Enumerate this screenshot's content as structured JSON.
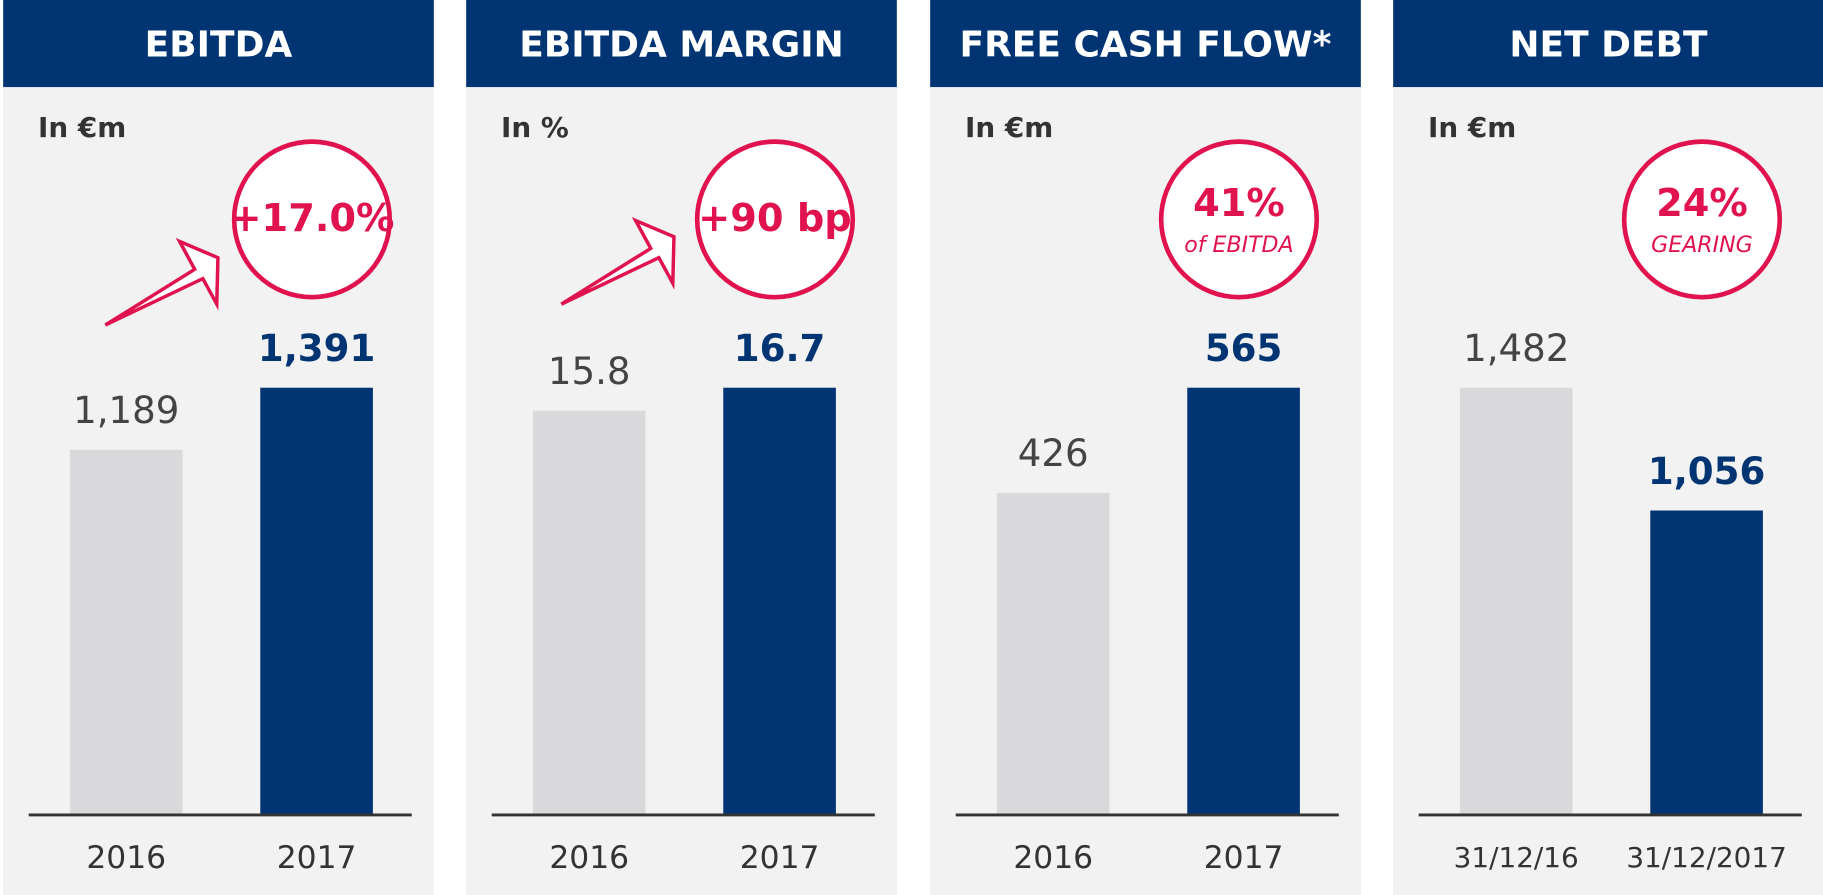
{
  "chart_data": [
    {
      "type": "bar",
      "title": "EBITDA",
      "unit": "In €m",
      "annotation": [
        "+17.0%"
      ],
      "categories": [
        "2016",
        "2017"
      ],
      "values": [
        1189,
        1391
      ],
      "value_labels": [
        "1,189",
        "1,391"
      ],
      "colors": [
        "#d9d9db",
        "#003473"
      ]
    },
    {
      "type": "bar",
      "title": "EBITDA MARGIN",
      "unit": "In %",
      "annotation": [
        "+90 bp"
      ],
      "categories": [
        "2016",
        "2017"
      ],
      "values": [
        15.8,
        16.7
      ],
      "colors": [
        "#d9d9db",
        "#003473"
      ]
    },
    {
      "type": "bar",
      "title": "FREE CASH FLOW*",
      "unit": "In €m",
      "annotation": [
        "41%",
        "of EBITDA"
      ],
      "categories": [
        "2016",
        "2017"
      ],
      "values": [
        426,
        565
      ],
      "colors": [
        "#d9d9db",
        "#003473"
      ]
    },
    {
      "type": "bar",
      "title": "NET DEBT",
      "unit": "In €m",
      "annotation": [
        "24%",
        "GEARING"
      ],
      "categories": [
        "31/12/16",
        "31/12/2017"
      ],
      "values": [
        1482,
        1056
      ],
      "value_labels": [
        "1,482",
        "1,056"
      ],
      "colors": [
        "#d9d9db",
        "#003473"
      ]
    }
  ]
}
